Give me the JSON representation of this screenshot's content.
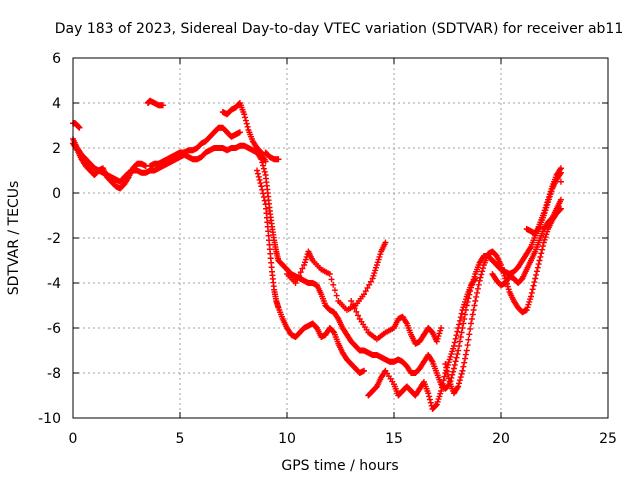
{
  "chart_data": {
    "type": "scatter",
    "title": "Day 183 of 2023, Sidereal Day-to-day VTEC variation (SDTVAR) for receiver ab11",
    "xlabel": "GPS time / hours",
    "ylabel": "SDTVAR / TECUs",
    "xlim": [
      0,
      25
    ],
    "ylim": [
      -10,
      6
    ],
    "xticks": [
      0,
      5,
      10,
      15,
      20,
      25
    ],
    "yticks": [
      -10,
      -8,
      -6,
      -4,
      -2,
      0,
      2,
      4,
      6
    ],
    "grid": true,
    "marker": "plus",
    "color": "#ff0000",
    "series": [
      {
        "values": [
          [
            0.0,
            2.4
          ],
          [
            0.2,
            2.0
          ],
          [
            0.4,
            1.7
          ],
          [
            0.6,
            1.5
          ],
          [
            0.8,
            1.3
          ],
          [
            1.0,
            1.1
          ],
          [
            1.2,
            1.0
          ],
          [
            1.4,
            0.9
          ],
          [
            1.6,
            0.8
          ],
          [
            1.8,
            0.7
          ],
          [
            2.0,
            0.6
          ],
          [
            2.2,
            0.5
          ],
          [
            2.4,
            0.7
          ],
          [
            2.6,
            0.9
          ],
          [
            2.8,
            1.0
          ],
          [
            3.0,
            1.0
          ],
          [
            3.2,
            0.9
          ],
          [
            3.4,
            0.9
          ],
          [
            3.6,
            1.0
          ],
          [
            3.8,
            1.0
          ],
          [
            4.0,
            1.1
          ],
          [
            4.2,
            1.2
          ],
          [
            4.4,
            1.3
          ],
          [
            4.6,
            1.4
          ],
          [
            4.8,
            1.5
          ],
          [
            5.0,
            1.6
          ],
          [
            5.2,
            1.7
          ],
          [
            5.4,
            1.6
          ],
          [
            5.6,
            1.5
          ],
          [
            5.8,
            1.5
          ],
          [
            6.0,
            1.6
          ],
          [
            6.2,
            1.8
          ],
          [
            6.4,
            1.9
          ],
          [
            6.6,
            2.0
          ],
          [
            6.8,
            2.0
          ],
          [
            7.0,
            2.0
          ],
          [
            7.2,
            1.9
          ],
          [
            7.4,
            2.0
          ],
          [
            7.6,
            2.0
          ],
          [
            7.8,
            2.1
          ],
          [
            8.0,
            2.1
          ],
          [
            8.2,
            2.0
          ],
          [
            8.4,
            1.9
          ],
          [
            8.6,
            1.8
          ],
          [
            8.8,
            1.5
          ],
          [
            9.0,
            0.8
          ],
          [
            9.1,
            0.0
          ],
          [
            9.2,
            -0.8
          ],
          [
            9.3,
            -1.5
          ],
          [
            9.4,
            -2.1
          ],
          [
            9.5,
            -2.6
          ],
          [
            9.6,
            -3.0
          ],
          [
            9.8,
            -3.2
          ],
          [
            10.0,
            -3.4
          ],
          [
            10.2,
            -3.6
          ],
          [
            10.4,
            -3.7
          ],
          [
            10.6,
            -3.8
          ],
          [
            10.8,
            -3.9
          ],
          [
            11.0,
            -4.0
          ],
          [
            11.2,
            -4.0
          ],
          [
            11.4,
            -4.1
          ],
          [
            11.6,
            -4.5
          ],
          [
            11.8,
            -5.0
          ],
          [
            12.0,
            -5.2
          ],
          [
            12.2,
            -5.3
          ],
          [
            12.4,
            -5.6
          ],
          [
            12.6,
            -6.0
          ],
          [
            12.8,
            -6.3
          ],
          [
            13.0,
            -6.6
          ],
          [
            13.2,
            -6.8
          ],
          [
            13.4,
            -7.0
          ],
          [
            13.6,
            -7.0
          ],
          [
            13.8,
            -7.1
          ],
          [
            14.0,
            -7.2
          ],
          [
            14.2,
            -7.2
          ],
          [
            14.4,
            -7.3
          ],
          [
            14.6,
            -7.4
          ],
          [
            14.8,
            -7.5
          ],
          [
            15.0,
            -7.5
          ],
          [
            15.2,
            -7.4
          ],
          [
            15.4,
            -7.5
          ],
          [
            15.6,
            -7.7
          ],
          [
            15.8,
            -8.0
          ],
          [
            16.0,
            -8.0
          ],
          [
            16.2,
            -7.8
          ],
          [
            16.4,
            -7.5
          ],
          [
            16.6,
            -7.2
          ],
          [
            16.8,
            -7.5
          ],
          [
            17.0,
            -8.0
          ],
          [
            17.2,
            -8.5
          ],
          [
            17.4,
            -8.7
          ],
          [
            17.6,
            -8.5
          ],
          [
            17.8,
            -7.8
          ],
          [
            18.0,
            -7.0
          ],
          [
            18.2,
            -6.0
          ],
          [
            18.4,
            -5.0
          ],
          [
            18.6,
            -4.2
          ],
          [
            18.8,
            -3.6
          ],
          [
            19.0,
            -3.1
          ],
          [
            19.2,
            -2.8
          ],
          [
            19.4,
            -2.8
          ],
          [
            19.6,
            -3.0
          ],
          [
            19.8,
            -3.2
          ],
          [
            20.0,
            -3.4
          ],
          [
            20.2,
            -3.5
          ],
          [
            20.4,
            -3.6
          ],
          [
            20.6,
            -3.5
          ],
          [
            20.8,
            -3.3
          ],
          [
            21.0,
            -3.0
          ],
          [
            21.2,
            -2.7
          ],
          [
            21.4,
            -2.4
          ],
          [
            21.6,
            -1.9
          ],
          [
            21.8,
            -1.4
          ],
          [
            22.0,
            -0.9
          ],
          [
            22.2,
            -0.3
          ],
          [
            22.4,
            0.3
          ],
          [
            22.6,
            0.8
          ],
          [
            22.8,
            1.1
          ]
        ]
      },
      {
        "values": [
          [
            0.0,
            3.1
          ],
          [
            0.1,
            3.1
          ],
          [
            0.2,
            3.0
          ],
          [
            0.3,
            2.9
          ],
          [
            0.0,
            2.2
          ],
          [
            0.2,
            1.9
          ],
          [
            0.4,
            1.5
          ],
          [
            0.6,
            1.2
          ],
          [
            0.8,
            1.0
          ],
          [
            1.0,
            0.8
          ],
          [
            1.2,
            1.0
          ],
          [
            1.4,
            1.1
          ],
          [
            1.6,
            0.7
          ],
          [
            1.8,
            0.5
          ],
          [
            2.0,
            0.3
          ],
          [
            2.2,
            0.2
          ],
          [
            2.4,
            0.4
          ],
          [
            2.6,
            0.7
          ],
          [
            2.8,
            1.1
          ],
          [
            3.0,
            1.3
          ],
          [
            3.2,
            1.3
          ],
          [
            3.4,
            1.2
          ],
          [
            3.5,
            4.0
          ],
          [
            3.6,
            4.1
          ],
          [
            3.8,
            4.0
          ],
          [
            4.0,
            3.9
          ],
          [
            4.2,
            3.9
          ],
          [
            3.6,
            1.2
          ],
          [
            3.8,
            1.3
          ],
          [
            4.0,
            1.3
          ],
          [
            4.2,
            1.4
          ],
          [
            4.4,
            1.5
          ],
          [
            4.6,
            1.6
          ],
          [
            4.8,
            1.7
          ],
          [
            5.0,
            1.8
          ],
          [
            5.2,
            1.8
          ],
          [
            5.4,
            1.9
          ],
          [
            5.6,
            1.9
          ],
          [
            5.8,
            2.0
          ],
          [
            6.0,
            2.2
          ],
          [
            6.2,
            2.3
          ],
          [
            6.4,
            2.5
          ],
          [
            6.6,
            2.7
          ],
          [
            6.8,
            2.9
          ],
          [
            7.0,
            2.9
          ],
          [
            7.2,
            2.7
          ],
          [
            7.4,
            2.5
          ],
          [
            7.6,
            2.6
          ],
          [
            7.8,
            2.7
          ],
          [
            7.0,
            3.6
          ],
          [
            7.2,
            3.5
          ],
          [
            7.4,
            3.7
          ],
          [
            7.6,
            3.8
          ],
          [
            7.8,
            4.0
          ],
          [
            8.0,
            3.5
          ],
          [
            8.2,
            2.8
          ],
          [
            8.4,
            2.3
          ],
          [
            8.6,
            2.0
          ],
          [
            8.8,
            1.8
          ],
          [
            9.0,
            1.4
          ],
          [
            9.0,
            1.8
          ],
          [
            9.2,
            1.6
          ],
          [
            9.4,
            1.5
          ],
          [
            9.6,
            1.5
          ],
          [
            8.6,
            1.0
          ],
          [
            8.8,
            0.3
          ],
          [
            9.0,
            -0.5
          ],
          [
            9.1,
            -1.5
          ],
          [
            9.2,
            -2.5
          ],
          [
            9.3,
            -3.5
          ],
          [
            9.4,
            -4.3
          ],
          [
            9.5,
            -4.8
          ],
          [
            9.6,
            -5.1
          ],
          [
            9.8,
            -5.6
          ],
          [
            10.0,
            -6.0
          ],
          [
            10.2,
            -6.3
          ],
          [
            10.4,
            -6.4
          ],
          [
            10.6,
            -6.2
          ],
          [
            10.8,
            -6.0
          ],
          [
            11.0,
            -5.9
          ],
          [
            11.2,
            -5.8
          ],
          [
            11.4,
            -6.0
          ],
          [
            11.6,
            -6.4
          ],
          [
            11.8,
            -6.3
          ],
          [
            12.0,
            -6.0
          ],
          [
            12.2,
            -6.2
          ],
          [
            12.4,
            -6.7
          ],
          [
            12.6,
            -7.1
          ],
          [
            12.8,
            -7.4
          ],
          [
            13.0,
            -7.6
          ],
          [
            13.2,
            -7.8
          ],
          [
            13.4,
            -8.0
          ],
          [
            13.6,
            -7.9
          ],
          [
            10.0,
            -3.6
          ],
          [
            10.4,
            -4.0
          ],
          [
            10.8,
            -3.2
          ],
          [
            11.0,
            -2.6
          ],
          [
            11.2,
            -3.0
          ],
          [
            11.6,
            -3.4
          ],
          [
            12.0,
            -3.6
          ],
          [
            12.4,
            -4.8
          ],
          [
            12.8,
            -5.2
          ],
          [
            13.2,
            -5.0
          ],
          [
            13.6,
            -4.5
          ],
          [
            14.0,
            -3.8
          ],
          [
            14.2,
            -3.2
          ],
          [
            14.4,
            -2.6
          ],
          [
            14.6,
            -2.2
          ],
          [
            13.0,
            -4.8
          ],
          [
            13.4,
            -5.6
          ],
          [
            13.8,
            -6.2
          ],
          [
            14.2,
            -6.5
          ],
          [
            14.6,
            -6.2
          ],
          [
            15.0,
            -6.0
          ],
          [
            15.2,
            -5.6
          ],
          [
            15.4,
            -5.5
          ],
          [
            15.6,
            -5.8
          ],
          [
            15.8,
            -6.3
          ],
          [
            16.0,
            -6.7
          ],
          [
            16.2,
            -6.6
          ],
          [
            16.4,
            -6.3
          ],
          [
            16.6,
            -6.0
          ],
          [
            16.8,
            -6.2
          ],
          [
            17.0,
            -6.6
          ],
          [
            17.2,
            -6.0
          ],
          [
            13.8,
            -9.0
          ],
          [
            14.0,
            -8.8
          ],
          [
            14.2,
            -8.6
          ],
          [
            14.4,
            -8.2
          ],
          [
            14.6,
            -7.9
          ],
          [
            15.0,
            -8.5
          ],
          [
            15.2,
            -9.0
          ],
          [
            15.4,
            -8.8
          ],
          [
            15.6,
            -8.6
          ],
          [
            15.8,
            -8.8
          ],
          [
            16.0,
            -9.0
          ],
          [
            16.2,
            -8.7
          ],
          [
            16.4,
            -8.4
          ],
          [
            16.6,
            -8.9
          ],
          [
            16.8,
            -9.6
          ],
          [
            17.0,
            -9.4
          ],
          [
            17.2,
            -8.8
          ],
          [
            17.4,
            -8.0
          ],
          [
            17.6,
            -7.4
          ],
          [
            17.8,
            -6.8
          ],
          [
            18.0,
            -6.0
          ],
          [
            18.2,
            -5.2
          ],
          [
            18.4,
            -4.6
          ],
          [
            18.6,
            -4.1
          ],
          [
            18.8,
            -3.8
          ],
          [
            17.4,
            -7.6
          ],
          [
            17.6,
            -8.4
          ],
          [
            17.8,
            -8.9
          ],
          [
            18.0,
            -8.6
          ],
          [
            18.2,
            -7.9
          ],
          [
            18.4,
            -7.0
          ],
          [
            18.6,
            -5.8
          ],
          [
            18.8,
            -4.8
          ],
          [
            19.0,
            -3.9
          ],
          [
            19.2,
            -3.2
          ],
          [
            19.4,
            -2.7
          ],
          [
            19.6,
            -2.6
          ],
          [
            19.8,
            -2.8
          ],
          [
            20.0,
            -3.2
          ],
          [
            20.2,
            -3.8
          ],
          [
            20.4,
            -4.4
          ],
          [
            20.6,
            -4.8
          ],
          [
            20.8,
            -5.1
          ],
          [
            21.0,
            -5.3
          ],
          [
            21.2,
            -5.2
          ],
          [
            21.4,
            -4.6
          ],
          [
            21.6,
            -3.8
          ],
          [
            21.8,
            -3.0
          ],
          [
            22.0,
            -2.2
          ],
          [
            22.2,
            -1.6
          ],
          [
            22.4,
            -1.2
          ],
          [
            22.6,
            -0.9
          ],
          [
            22.8,
            -0.7
          ],
          [
            19.6,
            -3.6
          ],
          [
            19.8,
            -3.9
          ],
          [
            20.0,
            -4.1
          ],
          [
            20.2,
            -4.0
          ],
          [
            20.4,
            -3.7
          ],
          [
            20.6,
            -3.8
          ],
          [
            20.8,
            -4.0
          ],
          [
            21.0,
            -3.8
          ],
          [
            21.2,
            -3.4
          ],
          [
            21.4,
            -3.0
          ],
          [
            21.6,
            -2.6
          ],
          [
            21.8,
            -2.1
          ],
          [
            22.0,
            -1.6
          ],
          [
            22.2,
            -1.3
          ],
          [
            22.4,
            -1.1
          ],
          [
            22.6,
            -0.7
          ],
          [
            22.8,
            -0.3
          ],
          [
            22.8,
            0.5
          ],
          [
            21.2,
            -1.6
          ],
          [
            21.4,
            -1.7
          ],
          [
            21.6,
            -1.8
          ],
          [
            21.8,
            -1.5
          ],
          [
            22.0,
            -1.0
          ],
          [
            22.2,
            -0.4
          ],
          [
            22.4,
            0.2
          ],
          [
            22.6,
            0.6
          ],
          [
            22.8,
            0.9
          ]
        ]
      }
    ]
  }
}
